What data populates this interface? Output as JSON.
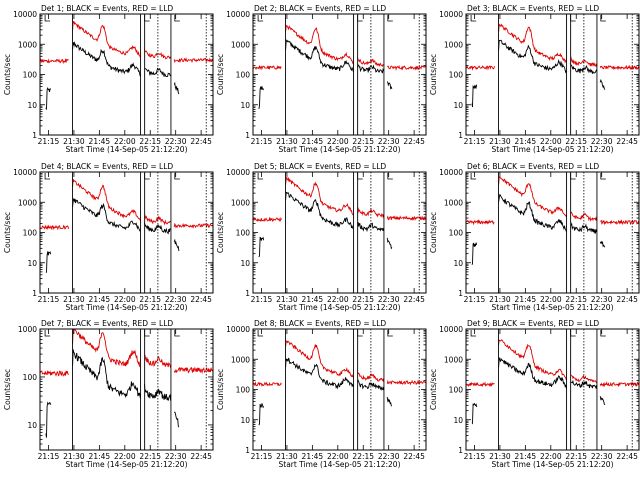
{
  "chart_data": [
    {
      "type": "line",
      "title": "Det 1; BLACK = Events, RED = LLD",
      "xlabel": "Start Time (14-Sep-05 21:12:20)",
      "ylabel": "Counts/sec",
      "x_ticks": [
        "21:15",
        "21:30",
        "21:45",
        "22:00",
        "22:15",
        "22:30",
        "22:45"
      ],
      "y_ticks": [
        "1",
        "10",
        "100",
        "1000",
        "10000"
      ],
      "ylim": [
        1,
        10000
      ],
      "yscale": "log",
      "series": [
        {
          "color": "#000000",
          "pre_level": 30,
          "peak": 1000,
          "flare_peak": 400,
          "end_level": 80
        },
        {
          "color": "#e00000",
          "pre_level": 280,
          "peak": 5000,
          "flare_peak": 3000,
          "end_level": 300
        }
      ]
    },
    {
      "type": "line",
      "title": "Det 2; BLACK = Events, RED = LLD",
      "xlabel": "Start Time (14-Sep-05 21:12:20)",
      "ylabel": "Counts/sec",
      "x_ticks": [
        "21:15",
        "21:30",
        "21:45",
        "22:00",
        "22:15",
        "22:30",
        "22:45"
      ],
      "y_ticks": [
        "1",
        "10",
        "100",
        "1000",
        "10000"
      ],
      "ylim": [
        1,
        10000
      ],
      "yscale": "log",
      "series": [
        {
          "color": "#000000",
          "pre_level": 35,
          "peak": 1200,
          "flare_peak": 500,
          "end_level": 100
        },
        {
          "color": "#e00000",
          "pre_level": 170,
          "peak": 4000,
          "flare_peak": 2500,
          "end_level": 170
        }
      ]
    },
    {
      "type": "line",
      "title": "Det 3; BLACK = Events, RED = LLD",
      "xlabel": "Start Time (14-Sep-05 21:12:20)",
      "ylabel": "Counts/sec",
      "x_ticks": [
        "21:15",
        "21:30",
        "21:45",
        "22:00",
        "22:15",
        "22:30",
        "22:45"
      ],
      "y_ticks": [
        "1",
        "10",
        "100",
        "1000",
        "10000"
      ],
      "ylim": [
        1,
        10000
      ],
      "yscale": "log",
      "series": [
        {
          "color": "#000000",
          "pre_level": 40,
          "peak": 1200,
          "flare_peak": 500,
          "end_level": 100
        },
        {
          "color": "#e00000",
          "pre_level": 170,
          "peak": 4500,
          "flare_peak": 2800,
          "end_level": 170
        }
      ]
    },
    {
      "type": "line",
      "title": "Det 4; BLACK = Events, RED = LLD",
      "xlabel": "Start Time (14-Sep-05 21:12:20)",
      "ylabel": "Counts/sec",
      "x_ticks": [
        "21:15",
        "21:30",
        "21:45",
        "22:00",
        "22:15",
        "22:30",
        "22:45"
      ],
      "y_ticks": [
        "1",
        "10",
        "100",
        "1000",
        "10000"
      ],
      "ylim": [
        1,
        10000
      ],
      "yscale": "log",
      "series": [
        {
          "color": "#000000",
          "pre_level": 20,
          "peak": 1200,
          "flare_peak": 500,
          "end_level": 90
        },
        {
          "color": "#e00000",
          "pre_level": 150,
          "peak": 5000,
          "flare_peak": 2500,
          "end_level": 170
        }
      ]
    },
    {
      "type": "line",
      "title": "Det 5; BLACK = Events, RED = LLD",
      "xlabel": "Start Time (14-Sep-05 21:12:20)",
      "ylabel": "Counts/sec",
      "x_ticks": [
        "21:15",
        "21:30",
        "21:45",
        "22:00",
        "22:15",
        "22:30",
        "22:45"
      ],
      "y_ticks": [
        "1",
        "10",
        "100",
        "1000",
        "10000"
      ],
      "ylim": [
        1,
        10000
      ],
      "yscale": "log",
      "series": [
        {
          "color": "#000000",
          "pre_level": 60,
          "peak": 2000,
          "flare_peak": 700,
          "end_level": 100
        },
        {
          "color": "#e00000",
          "pre_level": 270,
          "peak": 6000,
          "flare_peak": 3000,
          "end_level": 300
        }
      ]
    },
    {
      "type": "line",
      "title": "Det 6; BLACK = Events, RED = LLD",
      "xlabel": "Start Time (14-Sep-05 21:12:20)",
      "ylabel": "Counts/sec",
      "x_ticks": [
        "21:15",
        "21:30",
        "21:45",
        "22:00",
        "22:15",
        "22:30",
        "22:45"
      ],
      "y_ticks": [
        "1",
        "10",
        "100",
        "1000",
        "10000"
      ],
      "ylim": [
        1,
        10000
      ],
      "yscale": "log",
      "series": [
        {
          "color": "#000000",
          "pre_level": 40,
          "peak": 1500,
          "flare_peak": 600,
          "end_level": 90
        },
        {
          "color": "#e00000",
          "pre_level": 220,
          "peak": 7000,
          "flare_peak": 3000,
          "end_level": 220
        }
      ]
    },
    {
      "type": "line",
      "title": "Det 7; BLACK = Events, RED = LLD",
      "xlabel": "Start Time (14-Sep-05 21:12:20)",
      "ylabel": "Counts/sec",
      "x_ticks": [
        "21:15",
        "21:30",
        "21:45",
        "22:00",
        "22:15",
        "22:30",
        "22:45"
      ],
      "y_ticks": [
        "10",
        "100",
        "1000"
      ],
      "ylim": [
        3,
        1000
      ],
      "yscale": "log",
      "series": [
        {
          "color": "#000000",
          "pre_level": 25,
          "peak": 300,
          "flare_peak": 150,
          "end_level": 30
        },
        {
          "color": "#e00000",
          "pre_level": 120,
          "peak": 900,
          "flare_peak": 600,
          "end_level": 140
        }
      ]
    },
    {
      "type": "line",
      "title": "Det 8; BLACK = Events, RED = LLD",
      "xlabel": "Start Time (14-Sep-05 21:12:20)",
      "ylabel": "Counts/sec",
      "x_ticks": [
        "21:15",
        "21:30",
        "21:45",
        "22:00",
        "22:15",
        "22:30",
        "22:45"
      ],
      "y_ticks": [
        "1",
        "10",
        "100",
        "1000",
        "10000"
      ],
      "ylim": [
        1,
        10000
      ],
      "yscale": "log",
      "series": [
        {
          "color": "#000000",
          "pre_level": 30,
          "peak": 1000,
          "flare_peak": 400,
          "end_level": 90
        },
        {
          "color": "#e00000",
          "pre_level": 150,
          "peak": 4000,
          "flare_peak": 2000,
          "end_level": 170
        }
      ]
    },
    {
      "type": "line",
      "title": "Det 9; BLACK = Events, RED = LLD",
      "xlabel": "Start Time (14-Sep-05 21:12:20)",
      "ylabel": "Counts/sec",
      "x_ticks": [
        "21:15",
        "21:30",
        "21:45",
        "22:00",
        "22:15",
        "22:30",
        "22:45"
      ],
      "y_ticks": [
        "1",
        "10",
        "100",
        "1000",
        "10000"
      ],
      "ylim": [
        1,
        10000
      ],
      "yscale": "log",
      "series": [
        {
          "color": "#000000",
          "pre_level": 30,
          "peak": 1000,
          "flare_peak": 400,
          "end_level": 100
        },
        {
          "color": "#e00000",
          "pre_level": 150,
          "peak": 4500,
          "flare_peak": 2200,
          "end_level": 150
        }
      ]
    }
  ]
}
